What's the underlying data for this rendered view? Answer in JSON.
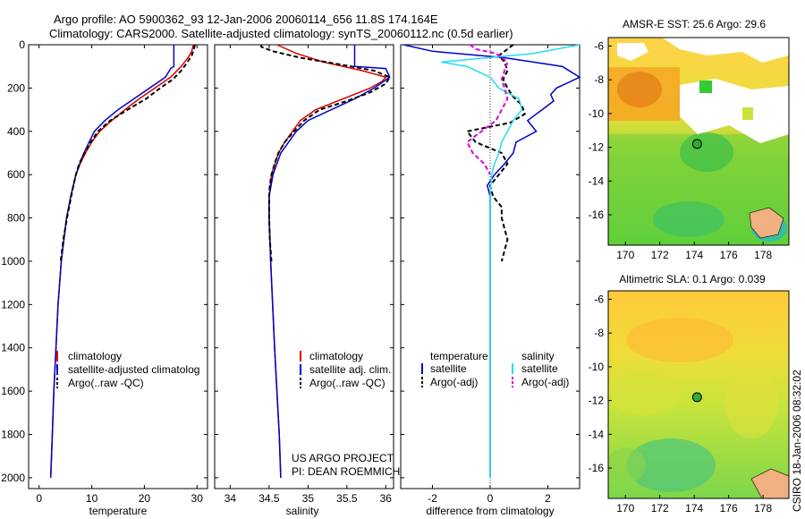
{
  "title_line1": "Argo profile: AO 5900362_93 12-Jan-2006 20060114_656 11.8S 174.164E",
  "title_line2": "Climatology: CARS2000. Satellite-adjusted climatology: synTS_20060112.nc (0.5d earlier)",
  "credit": "CSIRO 18-Jan-2006 08:32:02",
  "project_line1": "US ARGO PROJECT",
  "project_line2": "PI: DEAN ROEMMICH",
  "colors": {
    "climatology": "#dd0000",
    "satellite": "#0000cc",
    "argo": "#000000",
    "satellite_sal": "#22ddee",
    "argo_sal": "#dd00dd"
  },
  "chart_data": [
    {
      "type": "line",
      "name": "temperature",
      "xlabel": "temperature",
      "ylabel": "",
      "xlim": [
        -2,
        32
      ],
      "ylim": [
        2050,
        0
      ],
      "x_ticks": [
        0,
        10,
        20,
        30
      ],
      "y_ticks": [
        0,
        200,
        400,
        600,
        800,
        1000,
        1200,
        1400,
        1600,
        1800,
        2000
      ],
      "legend": [
        "climatology",
        "satellite-adjusted climatolog",
        "Argo(..raw -QC)"
      ],
      "series": [
        {
          "name": "climatology",
          "color_key": "climatology",
          "depth": [
            0,
            30,
            60,
            100,
            150,
            200,
            250,
            300,
            350,
            400,
            450,
            500,
            550,
            600,
            700,
            800,
            1000,
            1200,
            1400,
            1600,
            1800,
            2000
          ],
          "values": [
            29.3,
            29.0,
            28.3,
            27.0,
            25.0,
            22.0,
            19.0,
            16.3,
            13.8,
            11.5,
            10.0,
            8.8,
            7.8,
            7.0,
            6.0,
            5.2,
            4.2,
            3.6,
            3.2,
            2.8,
            2.5,
            2.2
          ]
        },
        {
          "name": "satellite-adjusted climatology",
          "color_key": "satellite",
          "depth": [
            0,
            100,
            110,
            150,
            200,
            250,
            300,
            350,
            400,
            450,
            500,
            550,
            600,
            700,
            800,
            1000,
            1200,
            1400,
            1600,
            1800,
            2000
          ],
          "values": [
            25.6,
            25.6,
            25.0,
            24.0,
            21.0,
            18.0,
            15.0,
            12.5,
            10.5,
            9.5,
            8.5,
            7.7,
            7.0,
            6.0,
            5.2,
            4.2,
            3.6,
            3.2,
            2.8,
            2.5,
            2.2
          ]
        },
        {
          "name": "Argo(..raw -QC)",
          "color_key": "argo",
          "dashed": true,
          "depth": [
            0,
            20,
            50,
            80,
            120,
            160,
            200,
            250,
            300,
            350,
            400,
            450,
            500,
            550,
            600,
            650,
            700,
            800,
            900,
            1000
          ],
          "values": [
            29.6,
            29.4,
            29.0,
            28.2,
            27.0,
            25.4,
            23.0,
            20.3,
            16.8,
            13.5,
            11.2,
            9.8,
            8.6,
            7.6,
            7.0,
            6.5,
            6.1,
            5.3,
            4.6,
            4.1
          ]
        }
      ]
    },
    {
      "type": "line",
      "name": "salinity",
      "xlabel": "salinity",
      "ylabel": "",
      "xlim": [
        33.8,
        36.1
      ],
      "ylim": [
        2050,
        0
      ],
      "x_ticks": [
        34,
        34.5,
        35,
        35.5,
        36
      ],
      "legend": [
        "climatology",
        "satellite adj. clim.",
        "Argo(..raw -QC)"
      ],
      "series": [
        {
          "name": "climatology",
          "color_key": "climatology",
          "depth": [
            0,
            40,
            80,
            120,
            150,
            170,
            200,
            250,
            300,
            350,
            400,
            450,
            500,
            600,
            700,
            800,
            1000,
            1400,
            1800,
            2000
          ],
          "values": [
            34.6,
            34.85,
            35.2,
            35.7,
            36.0,
            35.95,
            35.8,
            35.45,
            35.1,
            34.9,
            34.8,
            34.7,
            34.62,
            34.53,
            34.5,
            34.5,
            34.52,
            34.57,
            34.63,
            34.65
          ]
        },
        {
          "name": "satellite adj. clim.",
          "color_key": "satellite",
          "depth": [
            0,
            100,
            110,
            150,
            200,
            250,
            300,
            350,
            400,
            450,
            500,
            600,
            700,
            800,
            1000,
            1400,
            1800,
            2000
          ],
          "values": [
            35.6,
            35.6,
            36.0,
            36.05,
            35.85,
            35.6,
            35.3,
            35.0,
            34.85,
            34.75,
            34.65,
            34.55,
            34.5,
            34.5,
            34.52,
            34.57,
            34.63,
            34.65
          ]
        },
        {
          "name": "Argo(..raw -QC)",
          "color_key": "argo",
          "dashed": true,
          "depth": [
            0,
            10,
            30,
            60,
            90,
            120,
            150,
            180,
            220,
            260,
            300,
            350,
            400,
            450,
            500,
            550,
            600,
            650,
            700,
            800,
            900,
            1000
          ],
          "values": [
            34.4,
            34.4,
            34.55,
            34.9,
            35.4,
            35.85,
            36.05,
            36.0,
            35.8,
            35.5,
            35.15,
            34.95,
            34.82,
            34.7,
            34.62,
            34.57,
            34.53,
            34.51,
            34.5,
            34.5,
            34.51,
            34.53
          ]
        }
      ]
    },
    {
      "type": "line",
      "name": "difference",
      "xlabel": "difference from climatology",
      "ylabel": "",
      "xlim": [
        -3.1,
        3.1
      ],
      "ylim": [
        2050,
        0
      ],
      "x_ticks": [
        -2,
        0,
        2
      ],
      "legend_header_left": "temperature",
      "legend_header_right": "salinity",
      "legend": [
        "satellite",
        "Argo(-adj)",
        "satellite",
        "Argo(-adj)"
      ],
      "series": [
        {
          "name": "temperature satellite",
          "color_key": "satellite",
          "depth": [
            0,
            30,
            60,
            100,
            150,
            200,
            230,
            260,
            300,
            350,
            400,
            450,
            500,
            550,
            600,
            650,
            700,
            800,
            1000,
            1200,
            1400,
            1600,
            1800,
            2000
          ],
          "values": [
            -3.0,
            -2.0,
            0.5,
            2.5,
            3.1,
            2.3,
            2.1,
            2.2,
            1.8,
            1.3,
            1.6,
            0.9,
            0.8,
            0.5,
            0.15,
            -0.1,
            0.0,
            0.0,
            0.0,
            0.0,
            0.0,
            0.0,
            0.0,
            0.0
          ]
        },
        {
          "name": "temperature Argo(-adj)",
          "color_key": "argo",
          "dashed": true,
          "depth": [
            0,
            20,
            50,
            80,
            120,
            160,
            200,
            240,
            280,
            320,
            360,
            400,
            450,
            500,
            550,
            600,
            650,
            700,
            750,
            800,
            850,
            900,
            950,
            1000
          ],
          "values": [
            0.8,
            0.6,
            0.3,
            0.5,
            0.6,
            0.45,
            0.6,
            0.8,
            1.1,
            1.2,
            0.7,
            -0.8,
            -0.5,
            0.4,
            0.6,
            0.3,
            0.0,
            0.1,
            0.4,
            0.4,
            0.5,
            0.6,
            0.5,
            0.4
          ]
        },
        {
          "name": "salinity satellite",
          "color_key": "satellite_sal",
          "depth": [
            0,
            40,
            80,
            100,
            150,
            200,
            250,
            300,
            350,
            400,
            450,
            500,
            550,
            600,
            700,
            800,
            1000,
            1400,
            1800,
            2000
          ],
          "values": [
            3.1,
            1.5,
            -1.7,
            -0.8,
            0.0,
            0.3,
            1.0,
            1.1,
            0.8,
            0.6,
            0.4,
            0.3,
            0.15,
            0.05,
            0.0,
            0.0,
            0.0,
            0.0,
            0.0,
            0.0
          ]
        },
        {
          "name": "salinity Argo(-adj)",
          "color_key": "argo_sal",
          "dashed": true,
          "depth": [
            0,
            20,
            40,
            80,
            120,
            160,
            200,
            250,
            300,
            350,
            400,
            450,
            500,
            550,
            600
          ],
          "values": [
            -0.7,
            -0.5,
            0.2,
            0.6,
            0.5,
            0.4,
            0.5,
            0.6,
            0.4,
            0.2,
            -0.3,
            -0.8,
            -0.6,
            -0.2,
            0.0
          ]
        }
      ]
    },
    {
      "type": "heatmap",
      "name": "sst_map",
      "title": "AMSR-E SST: 25.6 Argo: 29.6",
      "xlim": [
        169,
        179.5
      ],
      "ylim": [
        -17.8,
        -5.5
      ],
      "x_ticks": [
        170,
        172,
        174,
        176,
        178
      ],
      "y_ticks": [
        -6,
        -8,
        -10,
        -12,
        -14,
        -16
      ],
      "marker": {
        "lon": 174.164,
        "lat": -11.8
      }
    },
    {
      "type": "heatmap",
      "name": "sla_map",
      "title": "Altimetric SLA: 0.1 Argo: 0.039",
      "xlim": [
        169,
        179.5
      ],
      "ylim": [
        -17.8,
        -5.5
      ],
      "x_ticks": [
        170,
        172,
        174,
        176,
        178
      ],
      "y_ticks": [
        -6,
        -8,
        -10,
        -12,
        -14,
        -16
      ],
      "marker": {
        "lon": 174.164,
        "lat": -11.8
      }
    }
  ]
}
